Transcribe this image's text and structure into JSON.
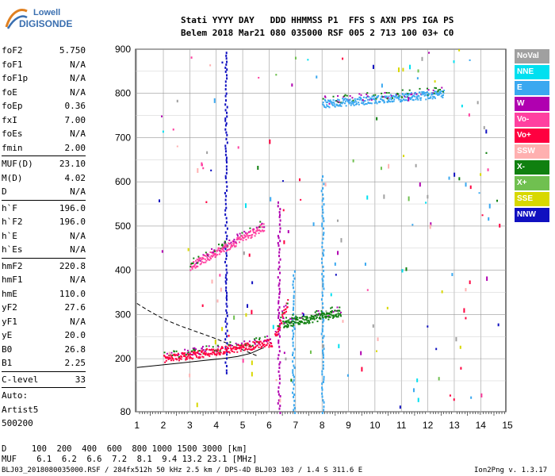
{
  "logo": {
    "line1": "Lowell",
    "line2": "DIGISONDE"
  },
  "header": {
    "line1": "Stati YYYY DAY   DDD HHMMSS P1  FFS S AXN PPS IGA PS",
    "line2": "Belem 2018 Mar21 080 035000 RSF 005 2 713 100 03+ C0"
  },
  "params": [
    {
      "k": "foF2",
      "v": "5.750"
    },
    {
      "k": "foF1",
      "v": "N/A"
    },
    {
      "k": "foF1p",
      "v": "N/A"
    },
    {
      "k": "foE",
      "v": "N/A"
    },
    {
      "k": "foEp",
      "v": "0.36"
    },
    {
      "k": "fxI",
      "v": "7.00"
    },
    {
      "k": "foEs",
      "v": "N/A"
    },
    {
      "k": "fmin",
      "v": "2.00"
    },
    {
      "sep": true
    },
    {
      "k": "MUF(D)",
      "v": "23.10"
    },
    {
      "k": "M(D)",
      "v": "4.02"
    },
    {
      "k": "D",
      "v": "N/A"
    },
    {
      "sep": true
    },
    {
      "k": "h`F",
      "v": "196.0"
    },
    {
      "k": "h`F2",
      "v": "196.0"
    },
    {
      "k": "h`E",
      "v": "N/A"
    },
    {
      "k": "h`Es",
      "v": "N/A"
    },
    {
      "sep": true
    },
    {
      "k": "hmF2",
      "v": "220.8"
    },
    {
      "k": "hmF1",
      "v": "N/A"
    },
    {
      "k": "hmE",
      "v": "110.0"
    },
    {
      "k": "yF2",
      "v": "27.6"
    },
    {
      "k": "yF1",
      "v": "N/A"
    },
    {
      "k": "yE",
      "v": "20.0"
    },
    {
      "k": "B0",
      "v": "26.8"
    },
    {
      "k": "B1",
      "v": "2.25"
    },
    {
      "sep": true
    },
    {
      "k": "C-level",
      "v": "33"
    },
    {
      "sep": true
    },
    {
      "k": "Auto:",
      "v": ""
    },
    {
      "k": "Artist5",
      "v": ""
    },
    {
      "k": "500200",
      "v": ""
    }
  ],
  "legend": [
    {
      "label": "NoVal",
      "color": "#a0a0a0"
    },
    {
      "label": "NNE",
      "color": "#00e0f0"
    },
    {
      "label": "E",
      "color": "#3aa8f0"
    },
    {
      "label": "W",
      "color": "#b000b0"
    },
    {
      "label": "Vo-",
      "color": "#ff40a0"
    },
    {
      "label": "Vo+",
      "color": "#ff0040"
    },
    {
      "label": "SSW",
      "color": "#ffb0b0"
    },
    {
      "label": "X-",
      "color": "#108010"
    },
    {
      "label": "X+",
      "color": "#70c050"
    },
    {
      "label": "SSE",
      "color": "#d8d800"
    },
    {
      "label": "NNW",
      "color": "#1010c0"
    }
  ],
  "footer": {
    "d_row": "D     100  200  400  600  800 1000 1500 3000 [km]",
    "muf_row": "MUF    6.1  6.2  6.6  7.2  8.1  9.4 13.2 23.1 [MHz]",
    "info": "BLJ03_2018080035000.RSF / 284fx512h 50 kHz 2.5 km / DPS-4D BLJ03 103 / 1.4 S 311.6 E",
    "version": "Ion2Png v. 1.3.17"
  },
  "chart_data": {
    "type": "scatter",
    "title": "",
    "xlabel": "",
    "ylabel": "",
    "xlim": [
      0.95,
      14.95
    ],
    "ylim": [
      80,
      900
    ],
    "xticks": [
      1,
      2,
      3,
      4,
      5,
      6,
      7,
      8,
      9,
      10,
      11,
      12,
      13,
      14,
      15
    ],
    "yticks": [
      80,
      200,
      300,
      400,
      500,
      600,
      700,
      800,
      900
    ],
    "grid": true,
    "lines": [
      {
        "style": "dashed",
        "x": [
          1.0,
          1.4,
          2.0,
          2.6,
          3.3,
          4.0,
          4.6,
          5.2,
          5.6
        ],
        "y": [
          325,
          310,
          290,
          275,
          260,
          245,
          230,
          215,
          205
        ]
      },
      {
        "style": "solid",
        "x": [
          1.0,
          1.8,
          2.6,
          3.4,
          4.2,
          4.8,
          5.3,
          5.6,
          5.8
        ],
        "y": [
          180,
          185,
          190,
          195,
          200,
          205,
          212,
          220,
          225
        ]
      }
    ],
    "traces": [
      {
        "name": "O F-trace",
        "x0": 2.0,
        "x1": 6.1,
        "y0": 200,
        "y1": 238,
        "color": "#ff0040"
      },
      {
        "name": "O upper",
        "x0": 6.2,
        "x1": 6.7,
        "y0": 250,
        "y1": 330,
        "color": "#ff0040"
      },
      {
        "name": "X trace",
        "x0": 6.5,
        "x1": 8.7,
        "y0": 280,
        "y1": 305,
        "color": "#108010"
      },
      {
        "name": "2F trace",
        "x0": 3.0,
        "x1": 5.8,
        "y0": 410,
        "y1": 500,
        "color": "#ff40a0"
      },
      {
        "name": "3F trace",
        "x0": 8.0,
        "x1": 12.6,
        "y0": 778,
        "y1": 800,
        "color": "#3aa8f0"
      }
    ],
    "vertical_bands": [
      {
        "x": 4.35,
        "y0": 170,
        "y1": 900,
        "color": "#1010c0"
      },
      {
        "x": 6.35,
        "y0": 80,
        "y1": 560,
        "color": "#b000b0"
      },
      {
        "x": 6.9,
        "y0": 80,
        "y1": 400,
        "color": "#3aa8f0"
      },
      {
        "x": 8.0,
        "y0": 80,
        "y1": 620,
        "color": "#3aa8f0"
      }
    ]
  }
}
